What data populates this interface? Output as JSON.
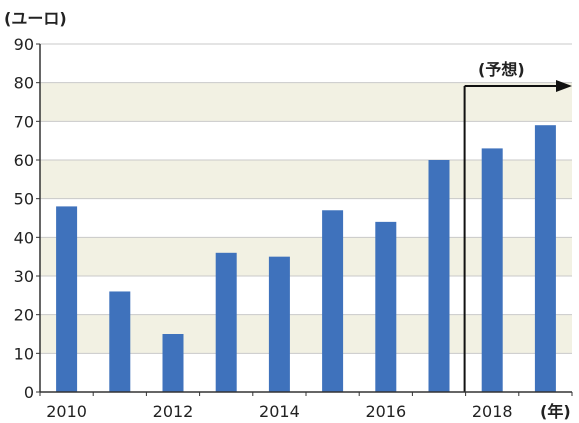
{
  "chart_data": {
    "type": "bar",
    "categories": [
      "2010",
      "2011",
      "2012",
      "2013",
      "2014",
      "2015",
      "2016",
      "2017",
      "2018",
      "2019"
    ],
    "values": [
      48,
      26,
      15,
      36,
      35,
      47,
      44,
      60,
      63,
      69
    ],
    "ylabel": "(ユーロ)",
    "xlabel": "(年)",
    "ylim": [
      0,
      90
    ],
    "yticks": [
      0,
      10,
      20,
      30,
      40,
      50,
      60,
      70,
      80,
      90
    ],
    "xtick_labels": [
      "2010",
      "2012",
      "2014",
      "2016",
      "2018"
    ],
    "forecast_label": "(予想)",
    "forecast_categories": [
      "2018",
      "2019"
    ],
    "colors": {
      "bar": "#3f72bc",
      "band": "#f2f1e3",
      "background": "#ffffff",
      "grid": "#c9c9c9",
      "axis": "#333333"
    },
    "grid": true
  }
}
